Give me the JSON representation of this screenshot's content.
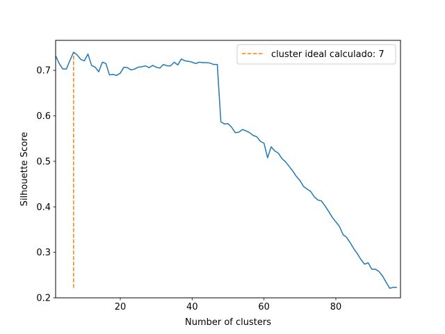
{
  "chart_data": {
    "type": "line",
    "title": "",
    "xlabel": "Number of clusters",
    "ylabel": "Silhouette Score",
    "xlim": [
      2,
      98
    ],
    "ylim": [
      0.2,
      0.766
    ],
    "x_ticks": [
      20,
      40,
      60,
      80
    ],
    "y_ticks": [
      0.2,
      0.3,
      0.4,
      0.5,
      0.6,
      0.7
    ],
    "grid": false,
    "legend_position": "top-right",
    "colors": {
      "series": "#1f77b4",
      "ideal": "#ff7f0e"
    },
    "series": [
      {
        "x": [
          2,
          3,
          4,
          5,
          6,
          7,
          8,
          9,
          10,
          11,
          12,
          13,
          14,
          15,
          16,
          17,
          18,
          19,
          20,
          21,
          22,
          23,
          24,
          25,
          26,
          27,
          28,
          29,
          30,
          31,
          32,
          33,
          34,
          35,
          36,
          37,
          38,
          39,
          40,
          41,
          42,
          43,
          44,
          45,
          46,
          47,
          48,
          49,
          50,
          51,
          52,
          53,
          54,
          55,
          56,
          57,
          58,
          59,
          60,
          61,
          62,
          63,
          64,
          65,
          66,
          67,
          68,
          69,
          70,
          71,
          72,
          73,
          74,
          75,
          76,
          77,
          78,
          79,
          80,
          81,
          82,
          83,
          84,
          85,
          86,
          87,
          88,
          89,
          90,
          91,
          92,
          93,
          94,
          95,
          96,
          97
        ],
        "values": [
          0.732,
          0.715,
          0.703,
          0.703,
          0.722,
          0.74,
          0.734,
          0.724,
          0.721,
          0.736,
          0.711,
          0.707,
          0.697,
          0.718,
          0.715,
          0.69,
          0.691,
          0.689,
          0.694,
          0.707,
          0.706,
          0.701,
          0.703,
          0.707,
          0.708,
          0.71,
          0.706,
          0.711,
          0.707,
          0.705,
          0.713,
          0.71,
          0.71,
          0.718,
          0.712,
          0.725,
          0.721,
          0.72,
          0.718,
          0.715,
          0.718,
          0.717,
          0.717,
          0.716,
          0.713,
          0.713,
          0.587,
          0.582,
          0.583,
          0.575,
          0.563,
          0.564,
          0.57,
          0.567,
          0.563,
          0.557,
          0.554,
          0.544,
          0.54,
          0.508,
          0.532,
          0.523,
          0.518,
          0.506,
          0.499,
          0.489,
          0.479,
          0.467,
          0.458,
          0.445,
          0.439,
          0.434,
          0.422,
          0.415,
          0.413,
          0.402,
          0.39,
          0.377,
          0.367,
          0.357,
          0.339,
          0.333,
          0.321,
          0.308,
          0.297,
          0.284,
          0.274,
          0.277,
          0.263,
          0.263,
          0.258,
          0.248,
          0.234,
          0.221,
          0.223,
          0.223
        ]
      }
    ],
    "ideal": {
      "label": "cluster ideal calculado: 7",
      "x": 7,
      "y_from": 0.222,
      "y_to": 0.74
    }
  }
}
